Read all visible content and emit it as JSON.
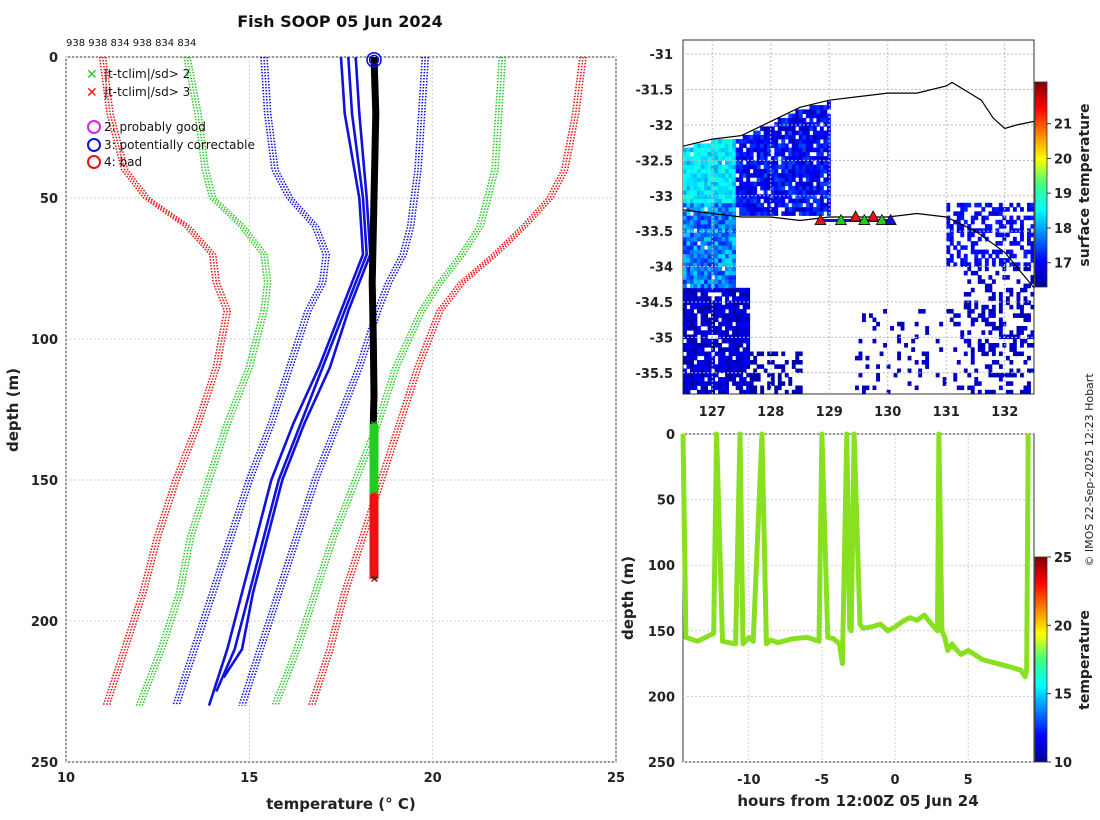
{
  "title": "Fish SOOP 05 Jun 2024",
  "credit": "© IMOS 22-Sep-2025 12:23 Hobart",
  "chart_data": [
    {
      "id": "profile",
      "type": "line",
      "header_ids": "938 938 834 938 834 834",
      "xlabel": "temperature (° C)",
      "ylabel": "depth (m)",
      "xlim": [
        10,
        25
      ],
      "ylim": [
        250,
        0
      ],
      "xticks": [
        "10",
        "15",
        "20",
        "25"
      ],
      "yticks": [
        "0",
        "50",
        "100",
        "150",
        "200",
        "250"
      ],
      "legend": [
        {
          "label": "|t-tclim|/sd> 2",
          "marker": "x",
          "color": "#22cc22"
        },
        {
          "label": "|t-tclim|/sd> 3",
          "marker": "x",
          "color": "#ee1111"
        },
        {
          "label": "2: probably good",
          "marker": "o",
          "color": "#dd22dd"
        },
        {
          "label": "3: potentially correctable",
          "marker": "o",
          "color": "#1111dd"
        },
        {
          "label": "4: bad",
          "marker": "o",
          "color": "#ee1111"
        }
      ],
      "climatology": [
        {
          "name": "clim-3sd-low",
          "color": "#ee1111",
          "depth": [
            0,
            20,
            40,
            50,
            60,
            70,
            80,
            90,
            110,
            130,
            150,
            170,
            190,
            210,
            230
          ],
          "temp": [
            11.0,
            11.2,
            11.6,
            12.2,
            13.3,
            14.0,
            14.1,
            14.4,
            14.1,
            13.6,
            13.0,
            12.5,
            12.1,
            11.6,
            11.1
          ]
        },
        {
          "name": "clim-2sd-low",
          "color": "#22cc22",
          "depth": [
            0,
            20,
            40,
            50,
            60,
            70,
            80,
            90,
            110,
            130,
            150,
            170,
            190,
            210,
            230
          ],
          "temp": [
            13.3,
            13.6,
            13.8,
            14.0,
            14.8,
            15.4,
            15.5,
            15.4,
            15.0,
            14.4,
            13.9,
            13.4,
            13.1,
            12.6,
            12.0
          ]
        },
        {
          "name": "clim-1sd-low",
          "color": "#1111dd",
          "depth": [
            0,
            20,
            40,
            50,
            60,
            70,
            80,
            90,
            110,
            130,
            150,
            170,
            190,
            210,
            230
          ],
          "temp": [
            15.4,
            15.5,
            15.7,
            16.1,
            16.8,
            17.1,
            17.0,
            16.6,
            16.1,
            15.6,
            15.0,
            14.5,
            14.0,
            13.5,
            13.0
          ]
        },
        {
          "name": "clim-1sd-high",
          "color": "#1111dd",
          "depth": [
            0,
            20,
            40,
            50,
            60,
            70,
            80,
            90,
            110,
            130,
            150,
            170,
            190,
            210,
            230
          ],
          "temp": [
            19.8,
            19.7,
            19.6,
            19.5,
            19.4,
            19.2,
            18.8,
            18.5,
            18.0,
            17.4,
            16.8,
            16.3,
            15.8,
            15.3,
            14.8
          ]
        },
        {
          "name": "clim-2sd-high",
          "color": "#22cc22",
          "depth": [
            0,
            20,
            40,
            50,
            60,
            70,
            80,
            90,
            110,
            130,
            150,
            170,
            190,
            210,
            230
          ],
          "temp": [
            21.9,
            21.8,
            21.7,
            21.5,
            21.3,
            20.8,
            20.2,
            19.7,
            19.0,
            18.5,
            17.9,
            17.3,
            16.8,
            16.3,
            15.7
          ]
        },
        {
          "name": "clim-3sd-high",
          "color": "#ee1111",
          "depth": [
            0,
            20,
            40,
            50,
            60,
            70,
            80,
            90,
            110,
            130,
            150,
            170,
            190,
            210,
            230
          ],
          "temp": [
            24.1,
            23.9,
            23.6,
            23.2,
            22.5,
            21.7,
            20.8,
            20.2,
            19.6,
            19.1,
            18.6,
            18.1,
            17.6,
            17.2,
            16.7
          ]
        }
      ],
      "profiles": [
        {
          "name": "profile-1",
          "color": "#1111dd",
          "depth": [
            0,
            20,
            50,
            70,
            90,
            110,
            130,
            150,
            170,
            190,
            210,
            225
          ],
          "temp": [
            17.7,
            17.8,
            18.1,
            18.2,
            17.6,
            17.0,
            16.4,
            15.8,
            15.4,
            15.0,
            14.6,
            14.1
          ]
        },
        {
          "name": "profile-2",
          "color": "#1111dd",
          "depth": [
            0,
            20,
            50,
            70,
            90,
            110,
            130,
            150,
            170,
            190,
            210,
            230
          ],
          "temp": [
            17.5,
            17.6,
            18.0,
            18.1,
            17.5,
            16.9,
            16.2,
            15.6,
            15.2,
            14.8,
            14.4,
            13.9
          ]
        },
        {
          "name": "profile-3",
          "color": "#1111dd",
          "depth": [
            0,
            20,
            50,
            70,
            90,
            110,
            130,
            150,
            170,
            190,
            210,
            220
          ],
          "temp": [
            17.9,
            18.0,
            18.2,
            18.3,
            17.7,
            17.2,
            16.5,
            15.9,
            15.5,
            15.1,
            14.8,
            14.3
          ]
        }
      ],
      "current_profile": {
        "color": "#000000",
        "depth": [
          0,
          20,
          50,
          80,
          100,
          120,
          130,
          140,
          160,
          180,
          185
        ],
        "temp": [
          18.4,
          18.45,
          18.4,
          18.35,
          18.38,
          18.4,
          18.38,
          18.4,
          18.4,
          18.42,
          18.42
        ]
      },
      "flags": [
        {
          "name": "good-start-circle",
          "color": "#1111dd",
          "depth": 1,
          "temp": 18.4
        }
      ],
      "flag_segments": [
        {
          "name": "flag-2sd",
          "color": "#22cc22",
          "depth_from": 130,
          "depth_to": 155,
          "temp": 18.4
        },
        {
          "name": "flag-3sd",
          "color": "#ee1111",
          "depth_from": 155,
          "depth_to": 185,
          "temp": 18.4
        }
      ]
    },
    {
      "id": "sst-map",
      "type": "heatmap",
      "xlim": [
        126.5,
        132.5
      ],
      "ylim": [
        -35.8,
        -30.8
      ],
      "xticks": [
        "127",
        "128",
        "129",
        "130",
        "131",
        "132"
      ],
      "yticks": [
        "-31",
        "-31.5",
        "-32",
        "-32.5",
        "-33",
        "-33.5",
        "-34",
        "-34.5",
        "-35",
        "-35.5"
      ],
      "colorbar_label": "surface temperature",
      "colorbar_range": [
        16.3,
        22.2
      ],
      "colorbar_ticks": [
        "17",
        "18",
        "19",
        "20",
        "21"
      ],
      "coast": [
        [
          126.5,
          -32.3
        ],
        [
          127.0,
          -32.2
        ],
        [
          127.5,
          -32.15
        ],
        [
          128.0,
          -31.95
        ],
        [
          128.5,
          -31.75
        ],
        [
          129.0,
          -31.65
        ],
        [
          129.5,
          -31.6
        ],
        [
          130.0,
          -31.55
        ],
        [
          130.5,
          -31.55
        ],
        [
          131.0,
          -31.45
        ],
        [
          131.1,
          -31.4
        ],
        [
          131.4,
          -31.55
        ],
        [
          131.6,
          -31.65
        ],
        [
          131.8,
          -31.9
        ],
        [
          132.0,
          -32.05
        ],
        [
          132.2,
          -32.0
        ],
        [
          132.5,
          -31.95
        ]
      ],
      "track": [
        [
          126.5,
          -33.2
        ],
        [
          127.0,
          -33.25
        ],
        [
          127.5,
          -33.3
        ],
        [
          128.0,
          -33.3
        ],
        [
          128.5,
          -33.35
        ],
        [
          129.0,
          -33.3
        ],
        [
          129.5,
          -33.3
        ],
        [
          130.0,
          -33.3
        ],
        [
          130.5,
          -33.25
        ],
        [
          131.0,
          -33.3
        ],
        [
          131.5,
          -33.5
        ],
        [
          132.0,
          -33.8
        ],
        [
          132.3,
          -34.1
        ],
        [
          132.5,
          -34.3
        ]
      ],
      "stations": [
        {
          "lon": 128.85,
          "lat": -33.35,
          "color": "#ee1111"
        },
        {
          "lon": 129.2,
          "lat": -33.35,
          "color": "#22cc22"
        },
        {
          "lon": 129.45,
          "lat": -33.3,
          "color": "#ee1111"
        },
        {
          "lon": 129.6,
          "lat": -33.35,
          "color": "#22cc22"
        },
        {
          "lon": 129.75,
          "lat": -33.3,
          "color": "#ee1111"
        },
        {
          "lon": 129.9,
          "lat": -33.35,
          "color": "#22cc22"
        },
        {
          "lon": 130.05,
          "lat": -33.35,
          "color": "#1111dd"
        }
      ]
    },
    {
      "id": "depth-time",
      "type": "line",
      "xlabel": "hours from 12:00Z 05 Jun 24",
      "ylabel": "depth (m)",
      "xlim": [
        -14.5,
        9.5
      ],
      "ylim": [
        250,
        0
      ],
      "xticks": [
        "-10",
        "-5",
        "0",
        "5"
      ],
      "yticks": [
        "0",
        "50",
        "100",
        "150",
        "200",
        "250"
      ],
      "colorbar_label": "temperature",
      "colorbar_range": [
        10,
        25
      ],
      "colorbar_ticks": [
        "10",
        "15",
        "20",
        "25"
      ],
      "line_color": "#88e020",
      "hours": [
        -14.5,
        -14.3,
        -13.5,
        -12.4,
        -12.2,
        -11.8,
        -10.9,
        -10.6,
        -10.4,
        -10.0,
        -9.7,
        -9.1,
        -8.8,
        -8.5,
        -8.0,
        -7.0,
        -6.0,
        -5.2,
        -5.0,
        -4.6,
        -4.2,
        -3.8,
        -3.6,
        -3.3,
        -3.1,
        -3.0,
        -2.8,
        -2.4,
        -2.2,
        -1.6,
        -1.0,
        -0.5,
        0.0,
        0.5,
        1.0,
        1.5,
        2.0,
        2.5,
        2.9,
        3.0,
        3.2,
        3.4,
        3.6,
        3.9,
        4.0,
        4.5,
        5.0,
        6.0,
        7.0,
        8.0,
        8.6,
        8.9,
        9.0,
        9.1
      ],
      "depths": [
        0,
        155,
        158,
        152,
        0,
        158,
        160,
        0,
        160,
        155,
        158,
        0,
        160,
        157,
        159,
        156,
        155,
        158,
        0,
        155,
        156,
        160,
        175,
        0,
        148,
        150,
        0,
        145,
        148,
        147,
        145,
        150,
        147,
        143,
        140,
        142,
        138,
        145,
        150,
        0,
        150,
        155,
        165,
        160,
        162,
        168,
        165,
        172,
        175,
        178,
        180,
        185,
        180,
        0
      ]
    }
  ]
}
